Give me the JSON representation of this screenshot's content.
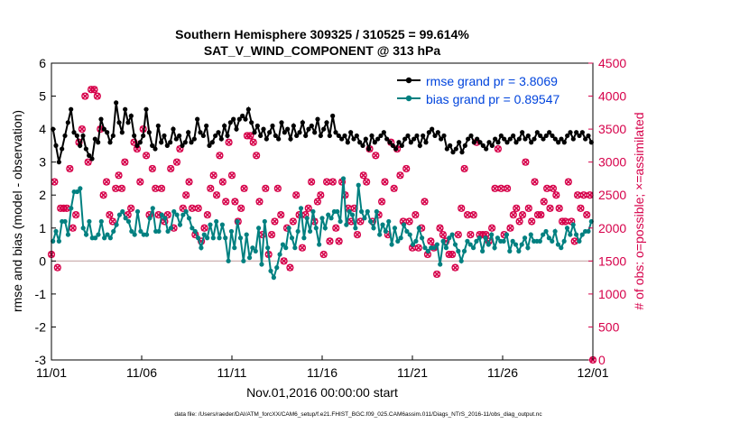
{
  "chart_data": {
    "type": "line",
    "title_line1": "Southern Hemisphere 309325 / 310525 = 99.614%",
    "title_line2": "SAT_V_WIND_COMPONENT @ 313 hPa",
    "xlabel": "Nov.01,2016 00:00:00 start",
    "ylabel_left": "rmse and bias (model - observation)",
    "ylabel_right": "# of obs: o=possible; ×=assimilated",
    "footer": "data file: /Users/raeder/DAI/ATM_forcXX/CAM6_setup/f.e21.FHIST_BGC.f09_025.CAM6assim.011/Diags_NTrS_2016-11/obs_diag_output.nc",
    "x_tick_labels": [
      "11/01",
      "11/06",
      "11/11",
      "11/16",
      "11/21",
      "11/26",
      "12/01"
    ],
    "x_range_days": [
      0,
      30
    ],
    "ylim_left": [
      -3,
      6
    ],
    "y_ticks_left": [
      "-3",
      "-2",
      "-1",
      "0",
      "1",
      "2",
      "3",
      "4",
      "5",
      "6"
    ],
    "ylim_right": [
      0,
      4500
    ],
    "y_ticks_right": [
      "0",
      "500",
      "1000",
      "1500",
      "2000",
      "2500",
      "3000",
      "3500",
      "4000",
      "4500"
    ],
    "legend_position": "top-right",
    "colors": {
      "rmse": "#000000",
      "bias": "#008080",
      "obs": "#d6004a",
      "zero_line": "#c8a8a8",
      "legend_text": "#0044dd"
    },
    "series": [
      {
        "name": "rmse grand pr = 3.8069",
        "values": [
          4.0,
          3.5,
          3.0,
          3.4,
          3.8,
          4.2,
          4.6,
          3.9,
          3.8,
          3.5,
          3.8,
          3.4,
          3.2,
          3.1,
          3.7,
          3.6,
          4.3,
          4.0,
          3.9,
          3.6,
          3.8,
          4.8,
          4.2,
          3.9,
          4.6,
          4.2,
          4.4,
          3.8,
          3.5,
          3.6,
          3.8,
          4.6,
          3.9,
          3.5,
          3.4,
          4.1,
          3.6,
          3.8,
          3.5,
          3.6,
          4.0,
          3.7,
          3.8,
          3.5,
          3.6,
          3.9,
          3.6,
          3.7,
          4.3,
          3.9,
          3.8,
          4.1,
          3.5,
          3.6,
          3.8,
          3.9,
          3.7,
          4.1,
          3.8,
          4.2,
          4.3,
          4.0,
          4.3,
          4.4,
          4.3,
          4.6,
          4.2,
          3.9,
          4.1,
          3.8,
          4.0,
          3.7,
          3.9,
          4.1,
          3.8,
          3.7,
          4.2,
          3.9,
          4.0,
          3.7,
          4.1,
          3.8,
          3.9,
          4.2,
          3.8,
          4.0,
          4.1,
          3.9,
          4.3,
          3.8,
          4.0,
          4.2,
          3.8,
          4.4,
          3.9,
          3.8,
          3.7,
          3.8,
          3.6,
          3.9,
          3.7,
          3.8,
          3.6,
          3.5,
          3.7,
          3.4,
          3.8,
          3.6,
          3.7,
          3.8,
          3.9,
          3.7,
          3.6,
          3.5,
          3.4,
          3.6,
          3.5,
          3.7,
          3.8,
          3.6,
          3.7,
          3.8,
          3.5,
          3.8,
          3.6,
          3.9,
          4.0,
          3.8,
          3.9,
          3.7,
          3.8,
          3.4,
          3.5,
          3.3,
          3.4,
          3.6,
          3.3,
          3.5,
          3.7,
          3.8,
          3.6,
          3.7,
          3.6,
          3.5,
          3.4,
          3.6,
          3.5,
          3.7,
          3.6,
          3.8,
          3.7,
          3.6,
          3.7,
          3.8,
          3.6,
          3.7,
          3.9,
          3.7,
          3.8,
          3.6,
          3.7,
          3.9,
          3.8,
          3.7,
          3.8,
          3.9,
          3.8,
          3.7,
          3.6,
          3.7,
          3.6,
          3.8,
          3.9,
          3.7,
          3.9,
          3.8,
          3.9,
          3.7,
          3.8,
          3.6
        ]
      },
      {
        "name": "bias grand pr = 0.89547",
        "values": [
          0.6,
          0.9,
          0.6,
          1.2,
          1.2,
          0.8,
          1.6,
          2.1,
          2.1,
          2.2,
          1.0,
          0.8,
          1.2,
          0.7,
          0.7,
          0.8,
          1.2,
          0.7,
          0.8,
          0.7,
          0.9,
          1.1,
          1.4,
          1.5,
          1.3,
          1.2,
          0.9,
          0.8,
          1.5,
          0.9,
          0.8,
          0.8,
          1.3,
          1.6,
          0.9,
          0.9,
          1.4,
          1.3,
          0.9,
          1.0,
          1.5,
          1.4,
          1.1,
          1.4,
          1.5,
          1.3,
          1.0,
          0.9,
          0.7,
          0.4,
          0.8,
          0.7,
          1.1,
          0.7,
          1.2,
          0.7,
          1.1,
          0.7,
          0.0,
          0.9,
          0.4,
          1.2,
          0.7,
          0.0,
          0.8,
          0.1,
          0.4,
          0.3,
          1.0,
          -0.1,
          1.2,
          0.4,
          -0.3,
          -0.5,
          -0.2,
          0.2,
          0.5,
          0.4,
          1.0,
          0.7,
          0.4,
          0.9,
          1.6,
          0.7,
          1.3,
          0.9,
          1.5,
          1.0,
          0.5,
          1.3,
          1.0,
          1.4,
          1.3,
          1.5,
          1.5,
          1.2,
          2.5,
          1.1,
          1.5,
          1.4,
          1.0,
          2.3,
          1.5,
          1.3,
          1.5,
          1.2,
          1.0,
          1.5,
          0.8,
          1.1,
          0.9,
          1.2,
          0.5,
          1.0,
          0.6,
          0.7,
          1.1,
          0.9,
          0.8,
          0.5,
          0.6,
          1.0,
          0.7,
          0.4,
          0.3,
          0.4,
          0.4,
          0.5,
          -0.1,
          0.6,
          0.4,
          0.7,
          0.8,
          0.5,
          0.3,
          0.0,
          0.3,
          0.6,
          0.5,
          0.4,
          0.6,
          0.7,
          0.3,
          0.7,
          0.5,
          0.8,
          0.4,
          0.7,
          0.6,
          0.6,
          0.8,
          0.3,
          0.6,
          0.5,
          0.3,
          0.5,
          0.7,
          0.4,
          0.8,
          0.6,
          0.6,
          0.6,
          0.8,
          0.9,
          0.7,
          0.6,
          0.9,
          0.5,
          0.4,
          0.6,
          1.0,
          0.8,
          1.1,
          0.8,
          0.6,
          0.8,
          0.9,
          0.9,
          1.2
        ]
      }
    ],
    "obs_counts_sample": [
      1600,
      2700,
      1400,
      2300,
      2300,
      2300,
      2900,
      2000,
      2200,
      3300,
      3500,
      4000,
      3000,
      4100,
      4100,
      4000,
      3500,
      2500,
      2700,
      2200,
      2100,
      2600,
      2800,
      2600,
      3000,
      2200,
      2300,
      3300,
      3200,
      2700,
      3500,
      3100,
      2200,
      2900,
      2600,
      2200,
      2600,
      2100,
      2200,
      2900,
      2000,
      3000,
      3200,
      2300,
      2500,
      2700,
      2300,
      1900,
      2300,
      1800,
      2000,
      2200,
      2600,
      2800,
      2500,
      3100,
      2700,
      2400,
      3300,
      2800,
      2400,
      2100,
      2300,
      2600,
      3400,
      3400,
      3300,
      3100,
      2400,
      1900,
      2600,
      1600,
      1900,
      2100,
      2600,
      2200,
      1500,
      2000,
      1400,
      2100,
      2500,
      2200,
      1700,
      2200,
      2300,
      2700,
      2100,
      2400,
      2500,
      1600,
      2700,
      1800,
      2700,
      2000,
      1800,
      2700,
      2500,
      2300,
      2100,
      2300,
      1900,
      2100,
      2800,
      2700,
      3200,
      2100,
      3100,
      2200,
      2400,
      2700,
      1900,
      3300,
      2600,
      3200,
      2800,
      2100,
      2900,
      2100,
      1700,
      2200,
      1700,
      2000,
      2400,
      1600,
      1800,
      1700,
      1300,
      2000,
      1900,
      1800,
      1600,
      1600,
      1400,
      1900,
      2300,
      2900,
      2200,
      1900,
      2200,
      3300,
      1900,
      1900,
      1900,
      1800,
      2000,
      2600,
      3200,
      2600,
      1900,
      2600,
      2000,
      2200,
      2300,
      2100,
      2200,
      3000,
      2300,
      2100,
      2700,
      2200,
      2200,
      2400,
      2600,
      2300,
      2600,
      2500,
      2300,
      2100,
      2100,
      2700,
      2100,
      1800,
      2500,
      2300,
      2500,
      2200,
      2500,
      0
    ]
  }
}
